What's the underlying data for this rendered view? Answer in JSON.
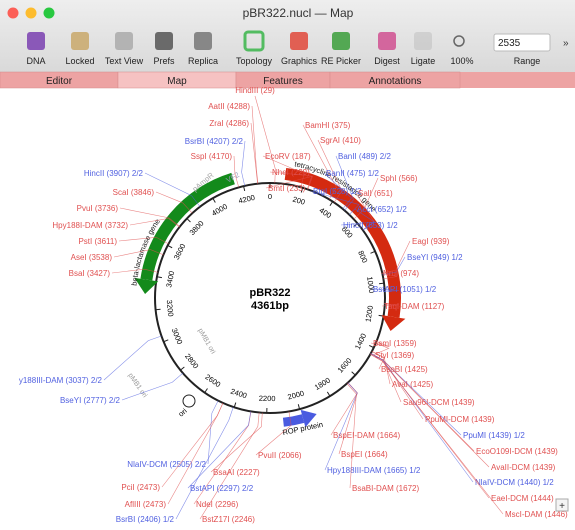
{
  "window": {
    "title": "pBR322.nucl — Map"
  },
  "toolbar": {
    "items": [
      "DNA",
      "Locked",
      "Text View",
      "Prefs",
      "Replica",
      "Topology",
      "Graphics",
      "RE Picker",
      "Digest",
      "Ligate",
      "100%",
      "Range"
    ],
    "position": "2535"
  },
  "tabs": [
    "Editor",
    "Map",
    "Features",
    "Annotations"
  ],
  "map": {
    "name": "pBR322",
    "length_label": "4361bp",
    "length": 4361,
    "ticks": [
      0,
      200,
      400,
      600,
      800,
      1000,
      1200,
      1400,
      1600,
      1800,
      2000,
      2200,
      2400,
      2600,
      2800,
      3000,
      3200,
      3400,
      3600,
      3800,
      4000,
      4200
    ],
    "features": [
      {
        "label": "tetracycline resistance gene",
        "start": 86,
        "end": 1276,
        "color": "#d42a10",
        "strand": "+"
      },
      {
        "label": "beta-lactamase gene",
        "start": 3293,
        "end": 4153,
        "color": "#138a1b",
        "strand": "-"
      },
      {
        "label": "ROP protein",
        "start": 1915,
        "end": 2106,
        "color": "#4a5be0",
        "strand": "-"
      }
    ],
    "ori_label": "ori",
    "primers": [
      "pAmpR",
      "VF2"
    ],
    "inner_labels": [
      "pMB1 ori",
      "pMB1 ori"
    ],
    "enzymes": [
      {
        "label": "HindIII (29)",
        "site": 29,
        "color": "#e05050"
      },
      {
        "label": "AatII (4288)",
        "site": 4288,
        "color": "#e05050"
      },
      {
        "label": "ZraI (4286)",
        "site": 4286,
        "color": "#e05050"
      },
      {
        "label": "BsrBI (4207) 2/2",
        "site": 4207,
        "color": "#5060e0"
      },
      {
        "label": "SspI (4170)",
        "site": 4170,
        "color": "#e05050"
      },
      {
        "label": "HincII (3907) 2/2",
        "site": 3907,
        "color": "#5060e0"
      },
      {
        "label": "ScaI (3846)",
        "site": 3846,
        "color": "#e05050"
      },
      {
        "label": "PvuI (3736)",
        "site": 3736,
        "color": "#e05050"
      },
      {
        "label": "Hpy188I-DAM (3732)",
        "site": 3732,
        "color": "#e05050"
      },
      {
        "label": "PstI (3611)",
        "site": 3611,
        "color": "#e05050"
      },
      {
        "label": "AseI (3538)",
        "site": 3538,
        "color": "#e05050"
      },
      {
        "label": "BsaI (3427)",
        "site": 3427,
        "color": "#e05050"
      },
      {
        "label": "y188III-DAM (3037) 2/2",
        "site": 3037,
        "color": "#5060e0"
      },
      {
        "label": "BseYI (2777) 2/2",
        "site": 2777,
        "color": "#5060e0"
      },
      {
        "label": "NlaIV-DCM (2505) 2/2",
        "site": 2505,
        "color": "#5060e0"
      },
      {
        "label": "PciI (2473)",
        "site": 2473,
        "color": "#e05050"
      },
      {
        "label": "AflIII (2473)",
        "site": 2473,
        "color": "#e05050"
      },
      {
        "label": "BsrBI (2406) 1/2",
        "site": 2406,
        "color": "#5060e0"
      },
      {
        "label": "BstZ17I (2246)",
        "site": 2246,
        "color": "#e05050"
      },
      {
        "label": "NdeI (2296)",
        "site": 2296,
        "color": "#e05050"
      },
      {
        "label": "BstAPI (2297) 2/2",
        "site": 2297,
        "color": "#5060e0"
      },
      {
        "label": "BsaAI (2227)",
        "site": 2227,
        "color": "#e05050"
      },
      {
        "label": "PvuII (2066)",
        "site": 2066,
        "color": "#e05050"
      },
      {
        "label": "BamHI (375)",
        "site": 375,
        "color": "#e05050"
      },
      {
        "label": "SgrAI (410)",
        "site": 410,
        "color": "#e05050"
      },
      {
        "label": "EcoRV (187)",
        "site": 187,
        "color": "#e05050"
      },
      {
        "label": "NheI (229)",
        "site": 229,
        "color": "#e05050"
      },
      {
        "label": "BmtI (233)",
        "site": 233,
        "color": "#e05050"
      },
      {
        "label": "BanII (489) 2/2",
        "site": 489,
        "color": "#5060e0"
      },
      {
        "label": "BanII (475) 1/2",
        "site": 475,
        "color": "#5060e0"
      },
      {
        "label": "SphI (566)",
        "site": 566,
        "color": "#e05050"
      },
      {
        "label": "BtgI (528) 1/2",
        "site": 528,
        "color": "#5060e0"
      },
      {
        "label": "SalI (651)",
        "site": 651,
        "color": "#e05050"
      },
      {
        "label": "AccI (652) 1/2",
        "site": 652,
        "color": "#5060e0"
      },
      {
        "label": "HincII (653) 1/2",
        "site": 653,
        "color": "#5060e0"
      },
      {
        "label": "EagI (939)",
        "site": 939,
        "color": "#e05050"
      },
      {
        "label": "BseYI (949) 1/2",
        "site": 949,
        "color": "#5060e0"
      },
      {
        "label": "NruI (974)",
        "site": 974,
        "color": "#e05050"
      },
      {
        "label": "BstAPI (1051) 1/2",
        "site": 1051,
        "color": "#5060e0"
      },
      {
        "label": "TaqI-DAM (1127)",
        "site": 1127,
        "color": "#e05050"
      },
      {
        "label": "BsmI (1359)",
        "site": 1359,
        "color": "#e05050"
      },
      {
        "label": "StyI (1369)",
        "site": 1369,
        "color": "#e05050"
      },
      {
        "label": "BsoBI (1425)",
        "site": 1425,
        "color": "#e05050"
      },
      {
        "label": "AvaI (1425)",
        "site": 1425,
        "color": "#e05050"
      },
      {
        "label": "Sau96I-DCM (1439)",
        "site": 1439,
        "color": "#e05050"
      },
      {
        "label": "PpuMI-DCM (1439)",
        "site": 1439,
        "color": "#e05050"
      },
      {
        "label": "PpuMI (1439) 1/2",
        "site": 1439,
        "color": "#5060e0"
      },
      {
        "label": "EcoO109I-DCM (1439)",
        "site": 1439,
        "color": "#e05050"
      },
      {
        "label": "AvaII-DCM (1439)",
        "site": 1439,
        "color": "#e05050"
      },
      {
        "label": "NlaIV-DCM (1440) 1/2",
        "site": 1440,
        "color": "#5060e0"
      },
      {
        "label": "EaeI-DCM (1444)",
        "site": 1444,
        "color": "#e05050"
      },
      {
        "label": "MscI-DAM (1446)",
        "site": 1446,
        "color": "#e05050"
      },
      {
        "label": "BspEI-DAM (1664)",
        "site": 1664,
        "color": "#e05050"
      },
      {
        "label": "BspEI (1664)",
        "site": 1664,
        "color": "#e05050"
      },
      {
        "label": "Hpy188III-DAM (1665) 1/2",
        "site": 1665,
        "color": "#5060e0"
      },
      {
        "label": "BsaBI-DAM (1672)",
        "site": 1672,
        "color": "#e05050"
      }
    ]
  }
}
